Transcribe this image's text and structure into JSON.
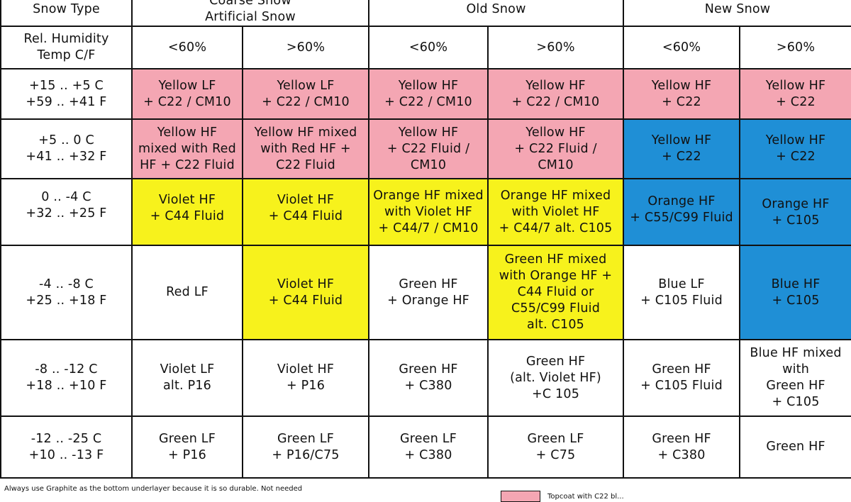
{
  "header": {
    "snow_type_label": "Snow Type",
    "groups": [
      {
        "label": "Coarse Snow\nArtificial Snow"
      },
      {
        "label": "Old Snow"
      },
      {
        "label": "New Snow"
      }
    ],
    "humidity_label": "Rel. Humidity\nTemp C/F",
    "humidity_values": [
      "<60%",
      ">60%",
      "<60%",
      ">60%",
      "<60%",
      ">60%"
    ]
  },
  "rows": [
    {
      "range": "+15 .. +5 C\n+59 .. +41 F",
      "cells": [
        {
          "text": "Yellow LF\n+ C22 / CM10",
          "color": "pink"
        },
        {
          "text": "Yellow LF\n+ C22 / CM10",
          "color": "pink"
        },
        {
          "text": "Yellow HF\n+ C22 / CM10",
          "color": "pink"
        },
        {
          "text": "Yellow HF\n+ C22 / CM10",
          "color": "pink"
        },
        {
          "text": "Yellow HF\n+ C22",
          "color": "pink"
        },
        {
          "text": "Yellow HF\n+ C22",
          "color": "pink"
        }
      ]
    },
    {
      "range": "+5 .. 0 C\n+41 .. +32 F",
      "cells": [
        {
          "text": "Yellow HF\nmixed with Red\nHF + C22 Fluid",
          "color": "pink"
        },
        {
          "text": "Yellow HF mixed\nwith Red HF +\nC22 Fluid",
          "color": "pink"
        },
        {
          "text": "Yellow HF\n+ C22 Fluid /\nCM10",
          "color": "pink"
        },
        {
          "text": "Yellow HF\n+ C22 Fluid /\nCM10",
          "color": "pink"
        },
        {
          "text": "Yellow HF\n+ C22",
          "color": "blue"
        },
        {
          "text": "Yellow HF\n+ C22",
          "color": "blue"
        }
      ]
    },
    {
      "range": "0 .. -4 C\n+32 .. +25 F",
      "cells": [
        {
          "text": "Violet HF\n+ C44 Fluid",
          "color": "yellow"
        },
        {
          "text": "Violet HF\n+ C44 Fluid",
          "color": "yellow"
        },
        {
          "text": "Orange HF mixed\nwith Violet HF\n+ C44/7 / CM10",
          "color": "yellow"
        },
        {
          "text": "Orange HF mixed\nwith Violet HF\n+ C44/7 alt. C105",
          "color": "yellow"
        },
        {
          "text": "Orange HF\n+ C55/C99 Fluid",
          "color": "blue"
        },
        {
          "text": "Orange HF\n+ C105",
          "color": "blue"
        }
      ]
    },
    {
      "range": "-4 .. -8 C\n+25 .. +18 F",
      "cells": [
        {
          "text": "Red LF",
          "color": "white"
        },
        {
          "text": "Violet HF\n+ C44 Fluid",
          "color": "yellow"
        },
        {
          "text": "Green HF\n+ Orange HF",
          "color": "white"
        },
        {
          "text": "Green HF mixed\nwith Orange HF +\nC44 Fluid or\nC55/C99 Fluid\nalt. C105",
          "color": "yellow"
        },
        {
          "text": "Blue LF\n+ C105 Fluid",
          "color": "white"
        },
        {
          "text": "Blue HF\n+ C105",
          "color": "blue"
        }
      ]
    },
    {
      "range": "-8 .. -12 C\n+18 .. +10 F",
      "cells": [
        {
          "text": "Violet LF\nalt. P16",
          "color": "white"
        },
        {
          "text": "Violet HF\n+ P16",
          "color": "white"
        },
        {
          "text": "Green HF\n+ C380",
          "color": "white"
        },
        {
          "text": "Green HF\n(alt. Violet HF)\n+C 105",
          "color": "white"
        },
        {
          "text": "Green HF\n+ C105 Fluid",
          "color": "white"
        },
        {
          "text": "Blue HF mixed\nwith\nGreen HF\n+ C105",
          "color": "white"
        }
      ]
    },
    {
      "range": "-12 .. -25 C\n+10 .. -13 F",
      "cells": [
        {
          "text": "Green LF\n+ P16",
          "color": "white"
        },
        {
          "text": "Green LF\n+ P16/C75",
          "color": "white"
        },
        {
          "text": "Green LF\n+ C380",
          "color": "white"
        },
        {
          "text": "Green LF\n+ C75",
          "color": "white"
        },
        {
          "text": "Green HF\n+ C380",
          "color": "white"
        },
        {
          "text": "Green HF",
          "color": "white"
        }
      ]
    }
  ],
  "footer": {
    "note": "Always use Graphite as the bottom underlayer because it is so durable. Not needed",
    "legend_text": "Topcoat with C22 bl..."
  },
  "colors": {
    "pink": "#f4a6b3",
    "yellow": "#f7f21c",
    "blue": "#1f8fd6",
    "border": "#111111"
  }
}
